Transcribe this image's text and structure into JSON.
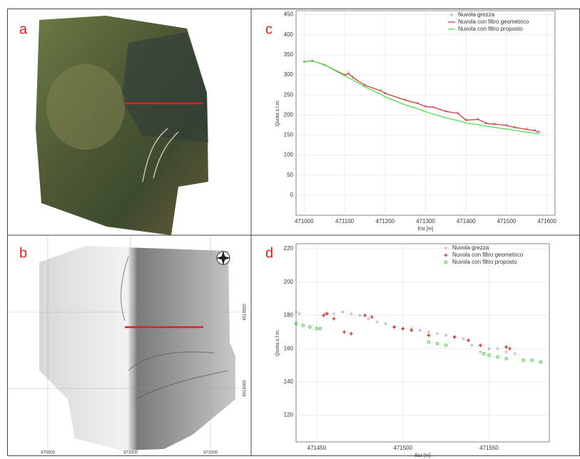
{
  "figure": {
    "panels": [
      {
        "label": "a"
      },
      {
        "label": "b",
        "xticks": [
          470500,
          471000,
          471500
        ],
        "yticks": [
          4514500,
          4514000
        ]
      }
    ]
  },
  "chart_data": [
    {
      "type": "line",
      "label": "c",
      "xlabel": "Est [m]",
      "ylabel": "Quota s.l.m.",
      "x": [
        471000,
        471020,
        471050,
        471100,
        471110,
        471120,
        471150,
        471190,
        471200,
        471250,
        471280,
        471300,
        471320,
        471350,
        471380,
        471400,
        471430,
        471450,
        471470,
        471500,
        471520,
        471550,
        471570,
        471580
      ],
      "series": [
        {
          "name": "Nuvola grezza",
          "color": "#888888",
          "marker": "dot",
          "values": [
            333,
            335,
            325,
            300,
            305,
            295,
            275,
            262,
            255,
            238,
            230,
            222,
            220,
            210,
            205,
            188,
            190,
            180,
            178,
            175,
            170,
            165,
            162,
            158
          ]
        },
        {
          "name": "Nuvola con filtro geometrico",
          "color": "#d03030",
          "marker": "line",
          "values": [
            333,
            335,
            325,
            300,
            303,
            294,
            274,
            260,
            254,
            237,
            229,
            221,
            219,
            209,
            204,
            187,
            189,
            179,
            177,
            174,
            169,
            164,
            161,
            157
          ]
        },
        {
          "name": "Nuvola con filtro proposto",
          "color": "#44dd44",
          "marker": "line",
          "values": [
            333,
            335,
            325,
            298,
            293,
            288,
            270,
            252,
            245,
            225,
            216,
            208,
            202,
            193,
            186,
            180,
            176,
            172,
            169,
            165,
            162,
            157,
            154,
            153
          ]
        }
      ],
      "xlim": [
        470980,
        471620
      ],
      "ylim": [
        -50,
        460
      ],
      "xticks": [
        471000,
        471100,
        471200,
        471300,
        471400,
        471500,
        471600
      ],
      "yticks": [
        0,
        50,
        100,
        150,
        200,
        250,
        300,
        350,
        400,
        450
      ],
      "grid": true,
      "legend": "upper right"
    },
    {
      "type": "scatter",
      "label": "d",
      "xlabel": "Est [m]",
      "ylabel": "Quota s.l.m.",
      "series": [
        {
          "name": "Nuvola grezza",
          "color": "#888888",
          "marker": "dot",
          "x": [
            471438,
            471440,
            471455,
            471460,
            471465,
            471470,
            471475,
            471480,
            471485,
            471490,
            471495,
            471500,
            471505,
            471510,
            471515,
            471520,
            471525,
            471530,
            471535,
            471540,
            471545,
            471550,
            471555,
            471560,
            471565
          ],
          "values": [
            182,
            181,
            181,
            181,
            182,
            181,
            180,
            178,
            176,
            175,
            173,
            172,
            172,
            171,
            170,
            169,
            168,
            167,
            166,
            162,
            158,
            160,
            160,
            158,
            157
          ]
        },
        {
          "name": "Nuvola con filtro geometrico",
          "color": "#e02020",
          "marker": "plus",
          "x": [
            471454,
            471456,
            471460,
            471466,
            471470,
            471478,
            471482,
            471495,
            471500,
            471505,
            471515,
            471530,
            471538,
            471545,
            471560,
            471562
          ],
          "values": [
            180,
            181,
            178,
            170,
            169,
            180,
            179,
            173,
            172,
            171,
            168,
            167,
            165,
            162,
            161,
            160
          ]
        },
        {
          "name": "Nuvola con filtro proposto",
          "color": "#33cc33",
          "marker": "circle",
          "x": [
            471438,
            471442,
            471446,
            471450,
            471452,
            471515,
            471520,
            471525,
            471547,
            471550,
            471555,
            471560,
            471570,
            471575,
            471580
          ],
          "values": [
            175,
            174,
            173,
            172,
            172,
            164,
            163,
            162,
            157,
            156,
            155,
            154,
            153,
            153,
            152
          ]
        }
      ],
      "xlim": [
        471438,
        471585
      ],
      "ylim": [
        104,
        223
      ],
      "xticks": [
        471450,
        471500,
        471550
      ],
      "yticks": [
        120,
        140,
        160,
        180,
        200,
        220
      ],
      "grid": true,
      "legend": "upper right"
    }
  ]
}
